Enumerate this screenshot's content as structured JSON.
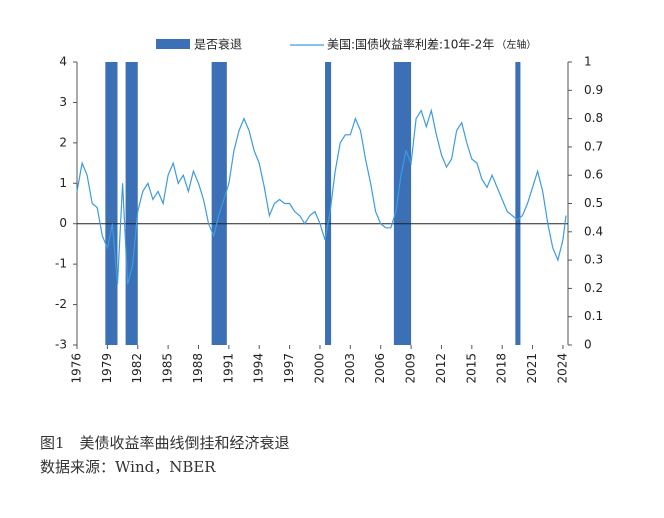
{
  "chart_data": {
    "type": "bar-line",
    "caption": "图1　美债收益率曲线倒挂和经济衰退",
    "source": "数据来源：Wind，NBER",
    "xlim": [
      1976,
      2024.5
    ],
    "xticks": [
      1976,
      1979,
      1982,
      1985,
      1988,
      1991,
      1994,
      1997,
      2000,
      2003,
      2006,
      2009,
      2012,
      2015,
      2018,
      2021,
      2024
    ],
    "ylim": [
      -3,
      4
    ],
    "yticks": [
      -3,
      -2,
      -1,
      0,
      1,
      2,
      3,
      4
    ],
    "y2lim": [
      0,
      1
    ],
    "y2ticks": [
      0,
      0.1,
      0.2,
      0.3,
      0.4,
      0.5,
      0.6,
      0.7,
      0.8,
      0.9,
      1
    ],
    "series": [
      {
        "name": "是否衰退",
        "type": "bar",
        "axis": "y2",
        "color": "#3b6fb6",
        "x_start": [
          1978.8,
          1980.8,
          1989.3,
          2000.5,
          2007.3,
          2019.3
        ],
        "x_end": [
          1980.0,
          1982.0,
          1990.8,
          2001.1,
          2009.0,
          2019.8
        ],
        "values": [
          1,
          1,
          1,
          1,
          1,
          1
        ]
      },
      {
        "name": "美国:国债收益率利差:10年-2年",
        "note": "（左轴）",
        "type": "line",
        "color": "#3d9be0",
        "x": [
          1976.0,
          1976.5,
          1977.0,
          1977.5,
          1978.0,
          1978.5,
          1979.0,
          1979.5,
          1980.0,
          1980.5,
          1981.0,
          1981.5,
          1982.0,
          1982.5,
          1983.0,
          1983.5,
          1984.0,
          1984.5,
          1985.0,
          1985.5,
          1986.0,
          1986.5,
          1987.0,
          1987.5,
          1988.0,
          1988.5,
          1989.0,
          1989.5,
          1990.0,
          1990.5,
          1991.0,
          1991.5,
          1992.0,
          1992.5,
          1993.0,
          1993.5,
          1994.0,
          1994.5,
          1995.0,
          1995.5,
          1996.0,
          1996.5,
          1997.0,
          1997.5,
          1998.0,
          1998.5,
          1999.0,
          1999.5,
          2000.0,
          2000.5,
          2001.0,
          2001.5,
          2002.0,
          2002.5,
          2003.0,
          2003.5,
          2004.0,
          2004.5,
          2005.0,
          2005.5,
          2006.0,
          2006.5,
          2007.0,
          2007.5,
          2008.0,
          2008.5,
          2009.0,
          2009.5,
          2010.0,
          2010.5,
          2011.0,
          2011.5,
          2012.0,
          2012.5,
          2013.0,
          2013.5,
          2014.0,
          2014.5,
          2015.0,
          2015.5,
          2016.0,
          2016.5,
          2017.0,
          2017.5,
          2018.0,
          2018.5,
          2019.0,
          2019.5,
          2020.0,
          2020.5,
          2021.0,
          2021.5,
          2022.0,
          2022.5,
          2023.0,
          2023.5,
          2024.0,
          2024.3
        ],
        "values": [
          0.8,
          1.5,
          1.2,
          0.5,
          0.4,
          -0.3,
          -0.6,
          0.0,
          -1.5,
          1.0,
          -1.5,
          -1.0,
          0.3,
          0.8,
          1.0,
          0.6,
          0.8,
          0.5,
          1.2,
          1.5,
          1.0,
          1.2,
          0.8,
          1.3,
          1.0,
          0.6,
          0.0,
          -0.3,
          0.2,
          0.6,
          1.0,
          1.8,
          2.3,
          2.6,
          2.3,
          1.8,
          1.5,
          0.9,
          0.2,
          0.5,
          0.6,
          0.5,
          0.5,
          0.3,
          0.2,
          0.0,
          0.2,
          0.3,
          0.0,
          -0.4,
          0.3,
          1.3,
          2.0,
          2.2,
          2.2,
          2.6,
          2.3,
          1.6,
          1.0,
          0.3,
          0.0,
          -0.1,
          -0.1,
          0.3,
          1.2,
          1.8,
          1.5,
          2.6,
          2.8,
          2.4,
          2.8,
          2.2,
          1.7,
          1.4,
          1.6,
          2.3,
          2.5,
          2.0,
          1.6,
          1.5,
          1.1,
          0.9,
          1.2,
          0.9,
          0.6,
          0.3,
          0.2,
          0.1,
          0.2,
          0.5,
          0.9,
          1.3,
          0.8,
          0.0,
          -0.6,
          -0.9,
          -0.4,
          0.2
        ]
      }
    ]
  }
}
